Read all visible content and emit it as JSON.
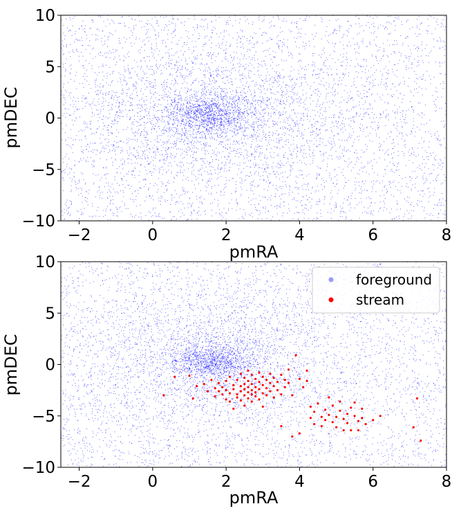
{
  "chart_data": [
    {
      "type": "scatter",
      "xlabel": "pmRA",
      "ylabel": "pmDEC",
      "xlim": [
        -2.5,
        8
      ],
      "ylim": [
        -10,
        10
      ],
      "xticks": [
        "−2",
        "0",
        "2",
        "4",
        "6",
        "8"
      ],
      "xtick_values": [
        -2,
        0,
        2,
        4,
        6,
        8
      ],
      "yticks": [
        "10",
        "5",
        "0",
        "−5",
        "−10"
      ],
      "ytick_values": [
        10,
        5,
        0,
        -5,
        -10
      ],
      "legend": null,
      "series": [
        {
          "color": "#0000ff",
          "distribution": "dense cluster centered near pmRA 1.6, pmDEC 0.3 with broad uniform scatter across the whole range",
          "cluster_center": [
            1.6,
            0.3
          ],
          "count_approx": 7000
        }
      ]
    },
    {
      "type": "scatter",
      "xlabel": "pmRA",
      "ylabel": "pmDEC",
      "xlim": [
        -2.5,
        8
      ],
      "ylim": [
        -10,
        10
      ],
      "xticks": [
        "−2",
        "0",
        "2",
        "4",
        "6",
        "8"
      ],
      "xtick_values": [
        -2,
        0,
        2,
        4,
        6,
        8
      ],
      "yticks": [
        "10",
        "5",
        "0",
        "−5",
        "−10"
      ],
      "ytick_values": [
        10,
        5,
        0,
        -5,
        -10
      ],
      "legend_position": "top-right",
      "series": [
        {
          "name": "foreground",
          "color": "#0000ff",
          "legend_color": "#9999ff",
          "cluster_center": [
            1.6,
            0.3
          ],
          "count_approx": 7000
        },
        {
          "name": "stream",
          "color": "#ff0000",
          "points": [
            [
              0.3,
              -3.0
            ],
            [
              0.6,
              -1.2
            ],
            [
              1.0,
              -1.1
            ],
            [
              1.1,
              -3.3
            ],
            [
              1.2,
              -2.1
            ],
            [
              1.4,
              -1.9
            ],
            [
              1.5,
              -2.6
            ],
            [
              1.6,
              -1.5
            ],
            [
              1.7,
              -2.3
            ],
            [
              1.7,
              -3.1
            ],
            [
              1.8,
              -2.6
            ],
            [
              1.8,
              -1.8
            ],
            [
              1.9,
              -2.9
            ],
            [
              1.9,
              -2.2
            ],
            [
              2.0,
              -3.4
            ],
            [
              2.0,
              -1.6
            ],
            [
              2.0,
              -2.5
            ],
            [
              2.1,
              -1.2
            ],
            [
              2.1,
              -2.8
            ],
            [
              2.1,
              -3.6
            ],
            [
              2.2,
              -2.0
            ],
            [
              2.2,
              -4.3
            ],
            [
              2.2,
              -2.4
            ],
            [
              2.3,
              -1.5
            ],
            [
              2.3,
              -2.9
            ],
            [
              2.3,
              -3.2
            ],
            [
              2.4,
              -0.9
            ],
            [
              2.4,
              -2.1
            ],
            [
              2.4,
              -2.6
            ],
            [
              2.4,
              -3.5
            ],
            [
              2.5,
              -1.3
            ],
            [
              2.5,
              -1.9
            ],
            [
              2.5,
              -2.4
            ],
            [
              2.5,
              -3.0
            ],
            [
              2.5,
              -4.0
            ],
            [
              2.6,
              -0.6
            ],
            [
              2.6,
              -1.6
            ],
            [
              2.6,
              -2.2
            ],
            [
              2.6,
              -2.7
            ],
            [
              2.6,
              -3.3
            ],
            [
              2.7,
              -1.0
            ],
            [
              2.7,
              -1.9
            ],
            [
              2.7,
              -2.5
            ],
            [
              2.7,
              -2.9
            ],
            [
              2.7,
              -3.6
            ],
            [
              2.8,
              -1.4
            ],
            [
              2.8,
              -2.2
            ],
            [
              2.8,
              -2.7
            ],
            [
              2.8,
              -3.1
            ],
            [
              2.9,
              -0.8
            ],
            [
              2.9,
              -1.7
            ],
            [
              2.9,
              -2.4
            ],
            [
              2.9,
              -3.4
            ],
            [
              3.0,
              -1.2
            ],
            [
              3.0,
              -2.0
            ],
            [
              3.0,
              -2.8
            ],
            [
              3.0,
              -4.1
            ],
            [
              3.1,
              -1.5
            ],
            [
              3.1,
              -2.3
            ],
            [
              3.1,
              -3.0
            ],
            [
              3.2,
              -0.9
            ],
            [
              3.2,
              -1.8
            ],
            [
              3.2,
              -2.6
            ],
            [
              3.3,
              -1.3
            ],
            [
              3.3,
              -2.1
            ],
            [
              3.3,
              -3.2
            ],
            [
              3.4,
              -1.7
            ],
            [
              3.4,
              -2.5
            ],
            [
              3.5,
              -6.0
            ],
            [
              3.5,
              -1.0
            ],
            [
              3.5,
              -2.9
            ],
            [
              3.6,
              -1.5
            ],
            [
              3.6,
              -2.2
            ],
            [
              3.7,
              -0.5
            ],
            [
              3.7,
              -1.8
            ],
            [
              3.8,
              -3.0
            ],
            [
              3.8,
              -7.0
            ],
            [
              3.9,
              0.9
            ],
            [
              4.0,
              -1.4
            ],
            [
              4.0,
              -6.7
            ],
            [
              4.1,
              -2.2
            ],
            [
              4.2,
              -0.6
            ],
            [
              4.2,
              -1.6
            ],
            [
              4.3,
              -4.1
            ],
            [
              4.3,
              -5.2
            ],
            [
              4.4,
              -4.6
            ],
            [
              4.4,
              -5.8
            ],
            [
              4.5,
              -3.8
            ],
            [
              4.6,
              -5.1
            ],
            [
              4.6,
              -6.0
            ],
            [
              4.7,
              -4.4
            ],
            [
              4.7,
              -5.4
            ],
            [
              4.8,
              -3.2
            ],
            [
              4.8,
              -4.9
            ],
            [
              4.9,
              -5.6
            ],
            [
              4.9,
              -4.0
            ],
            [
              5.0,
              -5.1
            ],
            [
              5.0,
              -6.1
            ],
            [
              5.1,
              -4.5
            ],
            [
              5.1,
              -3.6
            ],
            [
              5.2,
              -5.3
            ],
            [
              5.2,
              -6.4
            ],
            [
              5.3,
              -4.8
            ],
            [
              5.3,
              -5.7
            ],
            [
              5.4,
              -4.2
            ],
            [
              5.4,
              -6.4
            ],
            [
              5.5,
              -5.0
            ],
            [
              5.5,
              -3.7
            ],
            [
              5.6,
              -5.5
            ],
            [
              5.6,
              -6.4
            ],
            [
              5.7,
              -4.3
            ],
            [
              5.7,
              -5.2
            ],
            [
              5.8,
              -5.8
            ],
            [
              6.0,
              -5.4
            ],
            [
              6.2,
              -5.0
            ],
            [
              7.1,
              -6.1
            ],
            [
              7.2,
              -3.3
            ],
            [
              7.3,
              -7.4
            ]
          ]
        }
      ]
    }
  ]
}
